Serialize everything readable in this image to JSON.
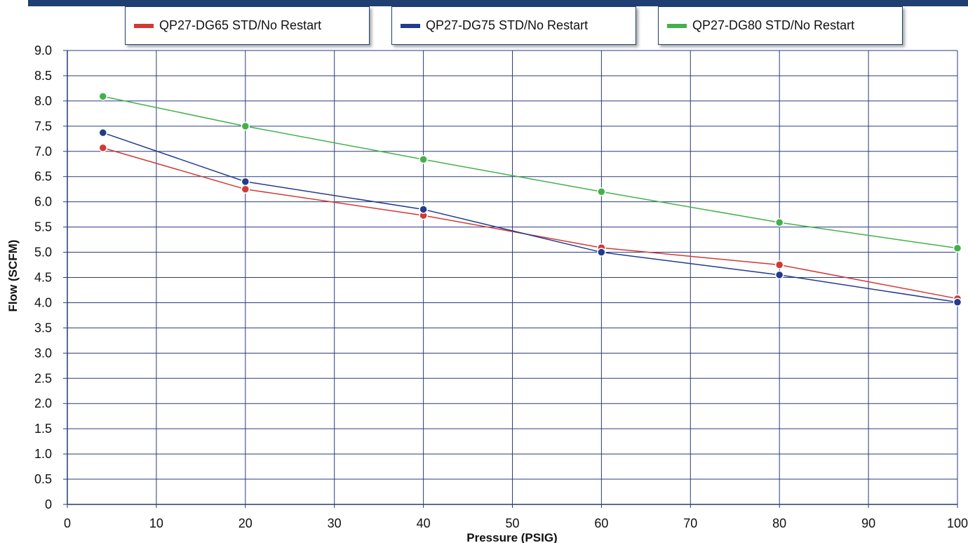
{
  "chart_data": {
    "type": "line",
    "xlabel": "Pressure (PSIG)",
    "ylabel": "Flow (SCFM)",
    "xlim": [
      0,
      100
    ],
    "ylim": [
      0,
      9
    ],
    "xticks": [
      0,
      10,
      20,
      30,
      40,
      50,
      60,
      70,
      80,
      90,
      100
    ],
    "xtick_labels": [
      "0",
      "10",
      "20",
      "30",
      "40",
      "50",
      "60",
      "70",
      "80",
      "90",
      "100"
    ],
    "yticks": [
      0,
      0.5,
      1,
      1.5,
      2,
      2.5,
      3,
      3.5,
      4,
      4.5,
      5,
      5.5,
      6,
      6.5,
      7,
      7.5,
      8,
      8.5,
      9
    ],
    "ytick_labels": [
      "0",
      "0.5",
      "1.0",
      "1.5",
      "2.0",
      "2.5",
      "3.0",
      "3.5",
      "4.0",
      "4.5",
      "5.0",
      "5.5",
      "6.0",
      "6.5",
      "7.0",
      "7.5",
      "8.0",
      "8.5",
      "9.0"
    ],
    "grid": true,
    "legend_position": "top",
    "x": [
      4,
      20,
      40,
      60,
      80,
      100
    ],
    "series": [
      {
        "name": "QP27-DG65 STD/No Restart",
        "color": "#d03a35",
        "values": [
          7.07,
          6.25,
          5.73,
          5.09,
          4.75,
          4.08
        ]
      },
      {
        "name": "QP27-DG75 STD/No Restart",
        "color": "#223b8c",
        "values": [
          7.37,
          6.4,
          5.85,
          5.0,
          4.55,
          4.01
        ]
      },
      {
        "name": "QP27-DG80 STD/No Restart",
        "color": "#44b04b",
        "values": [
          8.09,
          7.5,
          6.84,
          6.2,
          5.59,
          5.08
        ]
      }
    ]
  },
  "colors": {
    "axis": "#1f3f72",
    "grid": "#2a3a80",
    "band": "#1f3f72"
  }
}
